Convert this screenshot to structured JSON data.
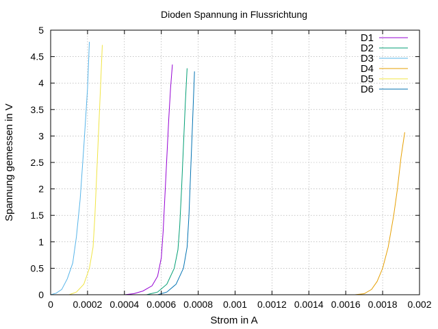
{
  "chart_data": {
    "type": "line",
    "title": "Dioden Spannung in Flussrichtung",
    "xlabel": "Strom in A",
    "ylabel": "Spannung gemessen in V",
    "xlim": [
      0,
      0.002
    ],
    "ylim": [
      0,
      5
    ],
    "xticks": [
      0,
      0.0002,
      0.0004,
      0.0006,
      0.0008,
      0.001,
      0.0012,
      0.0014,
      0.0016,
      0.0018,
      0.002
    ],
    "xtick_labels": [
      "0",
      "0.0002",
      "0.0004",
      "0.0006",
      "0.0008",
      "0.001",
      "0.0012",
      "0.0014",
      "0.0016",
      "0.0018",
      "0.002"
    ],
    "yticks": [
      0,
      0.5,
      1,
      1.5,
      2,
      2.5,
      3,
      3.5,
      4,
      4.5,
      5
    ],
    "ytick_labels": [
      "0",
      "0.5",
      "1",
      "1.5",
      "2",
      "2.5",
      "3",
      "3.5",
      "4",
      "4.5",
      "5"
    ],
    "grid": true,
    "legend_position": "top-right",
    "series": [
      {
        "name": "D1",
        "color": "#9400d3",
        "x": [
          0.0004,
          0.00045,
          0.0005,
          0.00055,
          0.00058,
          0.0006,
          0.00061,
          0.00062,
          0.00063,
          0.00064,
          0.00065,
          0.00066
        ],
        "y": [
          0,
          0.02,
          0.07,
          0.17,
          0.35,
          0.7,
          1.2,
          1.9,
          2.6,
          3.3,
          3.9,
          4.35
        ]
      },
      {
        "name": "D2",
        "color": "#009e73",
        "x": [
          0.00052,
          0.00058,
          0.00063,
          0.00067,
          0.00069,
          0.0007,
          0.00071,
          0.00072,
          0.00073,
          0.00074
        ],
        "y": [
          0,
          0.05,
          0.2,
          0.5,
          0.85,
          1.3,
          2.0,
          2.8,
          3.6,
          4.28
        ]
      },
      {
        "name": "D3",
        "color": "#56b4e9",
        "x": [
          0,
          3e-05,
          6e-05,
          9e-05,
          0.00012,
          0.00014,
          0.00016,
          0.00018,
          0.0002,
          0.00021
        ],
        "y": [
          0,
          0.03,
          0.1,
          0.3,
          0.6,
          1.1,
          1.8,
          2.8,
          3.9,
          4.78
        ]
      },
      {
        "name": "D4",
        "color": "#e69f00",
        "x": [
          0.00165,
          0.0017,
          0.00174,
          0.00177,
          0.0018,
          0.00183,
          0.00186,
          0.00188,
          0.0019,
          0.00192
        ],
        "y": [
          0,
          0.02,
          0.1,
          0.25,
          0.5,
          0.9,
          1.5,
          2.0,
          2.6,
          3.07
        ]
      },
      {
        "name": "D5",
        "color": "#f0e442",
        "x": [
          0.0001,
          0.00014,
          0.00018,
          0.00021,
          0.00023,
          0.00024,
          0.00025,
          0.00026,
          0.00027,
          0.00028
        ],
        "y": [
          0,
          0.05,
          0.2,
          0.5,
          0.9,
          1.5,
          2.3,
          3.1,
          3.9,
          4.72
        ]
      },
      {
        "name": "D6",
        "color": "#0072b2",
        "x": [
          0.00058,
          0.00063,
          0.00068,
          0.00072,
          0.00074,
          0.00075,
          0.00076,
          0.00077,
          0.00078
        ],
        "y": [
          0,
          0.05,
          0.2,
          0.5,
          0.9,
          1.5,
          2.4,
          3.3,
          4.22
        ]
      }
    ]
  }
}
